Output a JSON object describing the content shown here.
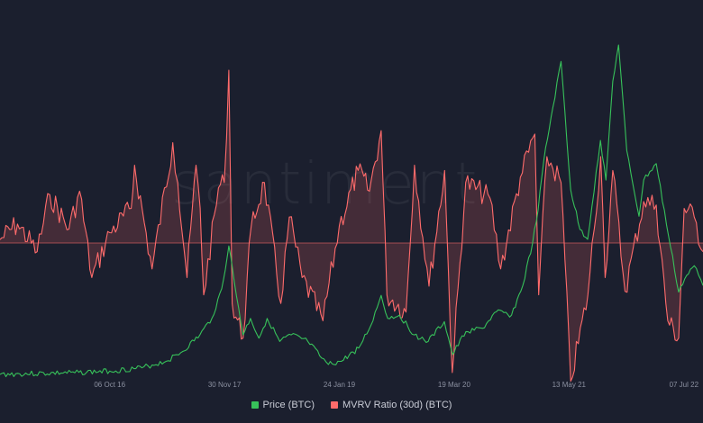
{
  "watermark": "santiment",
  "colors": {
    "background": "#1b1f2e",
    "price": "#37c15a",
    "mvrv": "#ff6b6b",
    "axis_text": "#8b90a0"
  },
  "legend": {
    "price_label": "Price (BTC)",
    "mvrv_label": "MVRV Ratio (30d) (BTC)"
  },
  "chart_data": {
    "type": "line",
    "title": "",
    "x_tick_labels": [
      "06 Oct 16",
      "30 Nov 17",
      "24 Jan 19",
      "19 Mar 20",
      "13 May 21",
      "07 Jul 22"
    ],
    "x_range": [
      "2015-09-01",
      "2022-09-15"
    ],
    "grid": false,
    "legend_position": "bottom-center",
    "series": [
      {
        "name": "Price (BTC)",
        "points": [
          [
            "2015-09-01",
            0.0
          ],
          [
            "2016-06-01",
            0.005
          ],
          [
            "2016-10-06",
            0.01
          ],
          [
            "2017-02-01",
            0.02
          ],
          [
            "2017-05-01",
            0.04
          ],
          [
            "2017-07-01",
            0.07
          ],
          [
            "2017-09-01",
            0.12
          ],
          [
            "2017-10-15",
            0.17
          ],
          [
            "2017-11-20",
            0.26
          ],
          [
            "2017-12-16",
            0.39
          ],
          [
            "2018-01-05",
            0.28
          ],
          [
            "2018-02-06",
            0.12
          ],
          [
            "2018-03-05",
            0.17
          ],
          [
            "2018-04-05",
            0.11
          ],
          [
            "2018-05-05",
            0.17
          ],
          [
            "2018-06-20",
            0.1
          ],
          [
            "2018-08-01",
            0.12
          ],
          [
            "2018-10-01",
            0.1
          ],
          [
            "2018-11-20",
            0.05
          ],
          [
            "2018-12-15",
            0.03
          ],
          [
            "2019-02-01",
            0.04
          ],
          [
            "2019-04-05",
            0.08
          ],
          [
            "2019-05-20",
            0.15
          ],
          [
            "2019-06-26",
            0.24
          ],
          [
            "2019-07-20",
            0.17
          ],
          [
            "2019-09-01",
            0.18
          ],
          [
            "2019-10-25",
            0.12
          ],
          [
            "2019-12-15",
            0.1
          ],
          [
            "2020-02-12",
            0.16
          ],
          [
            "2020-03-13",
            0.06
          ],
          [
            "2020-05-01",
            0.13
          ],
          [
            "2020-07-01",
            0.14
          ],
          [
            "2020-08-20",
            0.19
          ],
          [
            "2020-10-15",
            0.18
          ],
          [
            "2020-11-25",
            0.27
          ],
          [
            "2020-12-31",
            0.4
          ],
          [
            "2021-01-20",
            0.5
          ],
          [
            "2021-02-10",
            0.65
          ],
          [
            "2021-03-15",
            0.81
          ],
          [
            "2021-04-14",
            0.95
          ],
          [
            "2021-05-19",
            0.56
          ],
          [
            "2021-06-22",
            0.44
          ],
          [
            "2021-07-20",
            0.41
          ],
          [
            "2021-09-05",
            0.71
          ],
          [
            "2021-09-25",
            0.59
          ],
          [
            "2021-10-20",
            0.89
          ],
          [
            "2021-11-10",
            1.0
          ],
          [
            "2021-12-10",
            0.68
          ],
          [
            "2022-01-24",
            0.48
          ],
          [
            "2022-02-10",
            0.59
          ],
          [
            "2022-03-28",
            0.64
          ],
          [
            "2022-05-12",
            0.42
          ],
          [
            "2022-06-18",
            0.25
          ],
          [
            "2022-07-10",
            0.29
          ],
          [
            "2022-08-14",
            0.33
          ],
          [
            "2022-09-15",
            0.27
          ]
        ]
      },
      {
        "name": "MVRV Ratio (30d) (BTC)",
        "baseline": 0,
        "points": [
          [
            "2015-09-01",
            0.02
          ],
          [
            "2015-11-04",
            0.11
          ],
          [
            "2016-01-15",
            -0.05
          ],
          [
            "2016-03-01",
            0.28
          ],
          [
            "2016-05-10",
            0.08
          ],
          [
            "2016-06-18",
            0.3
          ],
          [
            "2016-08-02",
            -0.2
          ],
          [
            "2016-10-06",
            0.06
          ],
          [
            "2016-12-24",
            0.2
          ],
          [
            "2017-01-05",
            0.45
          ],
          [
            "2017-03-10",
            -0.15
          ],
          [
            "2017-05-25",
            0.58
          ],
          [
            "2017-06-12",
            0.35
          ],
          [
            "2017-07-16",
            -0.2
          ],
          [
            "2017-08-18",
            0.45
          ],
          [
            "2017-09-02",
            0.2
          ],
          [
            "2017-09-15",
            -0.3
          ],
          [
            "2017-11-08",
            0.32
          ],
          [
            "2017-11-29",
            0.35
          ],
          [
            "2017-12-16",
            1.0
          ],
          [
            "2017-12-28",
            -0.35
          ],
          [
            "2018-02-06",
            -0.55
          ],
          [
            "2018-03-08",
            0.1
          ],
          [
            "2018-04-25",
            0.35
          ],
          [
            "2018-06-24",
            -0.35
          ],
          [
            "2018-07-25",
            0.15
          ],
          [
            "2018-09-10",
            -0.2
          ],
          [
            "2018-11-25",
            -0.45
          ],
          [
            "2019-01-24",
            0.1
          ],
          [
            "2019-04-03",
            0.42
          ],
          [
            "2019-05-14",
            0.3
          ],
          [
            "2019-06-26",
            0.65
          ],
          [
            "2019-07-17",
            -0.3
          ],
          [
            "2019-09-25",
            -0.4
          ],
          [
            "2019-10-26",
            0.45
          ],
          [
            "2019-12-18",
            -0.25
          ],
          [
            "2020-02-13",
            0.42
          ],
          [
            "2020-03-12",
            -0.75
          ],
          [
            "2020-04-30",
            0.35
          ],
          [
            "2020-07-28",
            0.26
          ],
          [
            "2020-09-05",
            -0.15
          ],
          [
            "2020-11-16",
            0.38
          ],
          [
            "2021-01-08",
            0.63
          ],
          [
            "2021-01-22",
            -0.3
          ],
          [
            "2021-02-21",
            0.5
          ],
          [
            "2021-04-14",
            0.35
          ],
          [
            "2021-05-19",
            -0.8
          ],
          [
            "2021-07-21",
            -0.3
          ],
          [
            "2021-09-06",
            0.5
          ],
          [
            "2021-09-22",
            -0.2
          ],
          [
            "2021-10-20",
            0.42
          ],
          [
            "2021-12-04",
            -0.28
          ],
          [
            "2022-02-10",
            0.24
          ],
          [
            "2022-03-28",
            0.22
          ],
          [
            "2022-05-09",
            -0.45
          ],
          [
            "2022-06-18",
            -0.55
          ],
          [
            "2022-07-08",
            0.2
          ],
          [
            "2022-08-14",
            0.15
          ],
          [
            "2022-09-15",
            -0.05
          ]
        ]
      }
    ]
  }
}
